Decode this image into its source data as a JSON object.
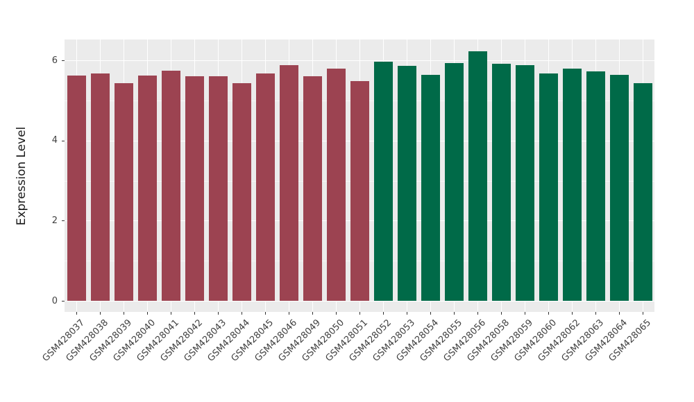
{
  "chart_data": {
    "type": "bar",
    "title": "",
    "xlabel": "",
    "ylabel": "Expression Level",
    "ylim": [
      -0.31,
      6.52
    ],
    "yticks_major": [
      0,
      2,
      4,
      6
    ],
    "yticks_minor": [
      1,
      3,
      5
    ],
    "grid": "major+minor horizontal, major vertical per category, white on grey panel",
    "legend_position": "none",
    "categories": [
      "GSM428037",
      "GSM428038",
      "GSM428039",
      "GSM428040",
      "GSM428041",
      "GSM428042",
      "GSM428043",
      "GSM428044",
      "GSM428045",
      "GSM428046",
      "GSM428049",
      "GSM428050",
      "GSM428051",
      "GSM428052",
      "GSM428053",
      "GSM428054",
      "GSM428055",
      "GSM428056",
      "GSM428058",
      "GSM428059",
      "GSM428060",
      "GSM428062",
      "GSM428063",
      "GSM428064",
      "GSM428065"
    ],
    "values": [
      5.62,
      5.68,
      5.43,
      5.62,
      5.74,
      5.6,
      5.6,
      5.43,
      5.67,
      5.88,
      5.61,
      5.8,
      5.49,
      5.97,
      5.87,
      5.64,
      5.93,
      6.22,
      5.91,
      5.88,
      5.68,
      5.79,
      5.72,
      5.64,
      5.43
    ],
    "groups": [
      "A",
      "A",
      "A",
      "A",
      "A",
      "A",
      "A",
      "A",
      "A",
      "A",
      "A",
      "A",
      "A",
      "B",
      "B",
      "B",
      "B",
      "B",
      "B",
      "B",
      "B",
      "B",
      "B",
      "B",
      "B"
    ],
    "group_colors": {
      "A": "#9C4351",
      "B": "#006A48"
    }
  },
  "colors": {
    "panel_background": "#EBEBEB",
    "grid_major": "#FFFFFF",
    "grid_minor": "#FFFFFF",
    "axis_text": "#404040",
    "axis_title": "#1a1a1a",
    "tick_mark": "#333333",
    "figure_background": "#FFFFFF"
  }
}
